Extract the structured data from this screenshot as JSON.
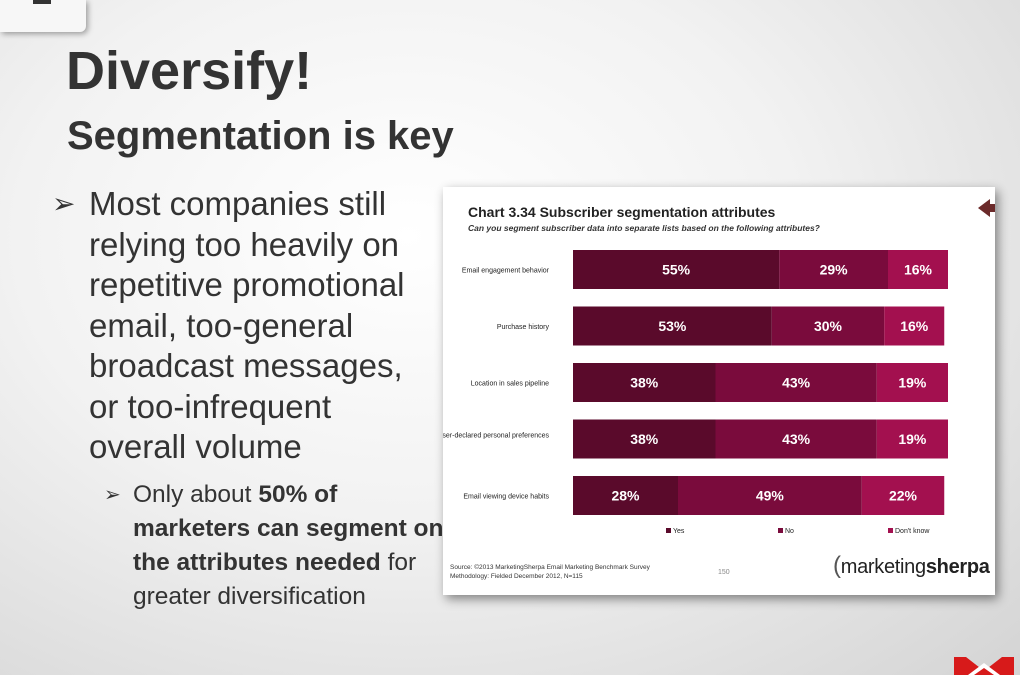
{
  "slide": {
    "title": "Diversify!",
    "subtitle": "Segmentation is key",
    "bullet_marker": "➢",
    "bullet": "Most companies still relying too heavily on repetitive promotional email, too-general broadcast messages, or too-infrequent overall volume",
    "sub_bullet": {
      "prefix": "Only about ",
      "bold": "50% of marketers can segment on the attributes needed",
      "suffix": " for greater diversification"
    }
  },
  "colors": {
    "yes": "#5a0a2b",
    "no": "#7a0b3c",
    "dont_know": "#a3104f",
    "label": "#ffffff"
  },
  "chart_data": {
    "type": "bar",
    "orientation": "horizontal-stacked-100",
    "title": "Chart 3.34 Subscriber segmentation attributes",
    "subtitle": "Can you segment subscriber data into separate lists based on the following attributes?",
    "categories": [
      "Email engagement behavior",
      "Purchase history",
      "Location in sales pipeline",
      "User-declared personal preferences",
      "Email viewing device habits"
    ],
    "series": [
      {
        "name": "Yes",
        "values": [
          55,
          53,
          38,
          38,
          28
        ]
      },
      {
        "name": "No",
        "values": [
          29,
          30,
          43,
          43,
          49
        ]
      },
      {
        "name": "Don't know",
        "values": [
          16,
          16,
          19,
          19,
          22
        ]
      }
    ],
    "xlim": [
      0,
      100
    ],
    "value_suffix": "%",
    "legend_position": "bottom",
    "grid": false
  },
  "chart_footer": {
    "source_line1": "Source: ©2013 MarketingSherpa Email Marketing Benchmark Survey",
    "source_line2": "Methodology: Fielded December 2012, N=115",
    "page": "150",
    "logo_normal": "marketing",
    "logo_bold": "sherpa"
  }
}
